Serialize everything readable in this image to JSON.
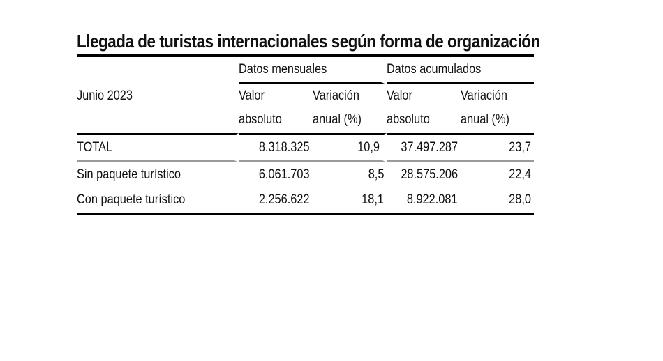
{
  "title": "Llegada de turistas internacionales según forma de organización",
  "table": {
    "period_label": "Junio 2023",
    "groups": {
      "monthly": "Datos mensuales",
      "cumulative": "Datos acumulados"
    },
    "subheaders": {
      "m_value_1": "Valor",
      "m_value_2": "absoluto",
      "m_var_1": "Variación",
      "m_var_2": "anual (%)",
      "c_value_1": "Valor",
      "c_value_2": "absoluto",
      "c_var_1": "Variación",
      "c_var_2": "anual (%)"
    },
    "rows": [
      {
        "label": "TOTAL",
        "m_value": "8.318.325",
        "m_var": "10,9",
        "c_value": "37.497.287",
        "c_var": "23,7"
      },
      {
        "label": "Sin paquete turístico",
        "m_value": "6.061.703",
        "m_var": "8,5",
        "c_value": "28.575.206",
        "c_var": "22,4"
      },
      {
        "label": "Con paquete turístico",
        "m_value": "2.256.622",
        "m_var": "18,1",
        "c_value": "8.922.081",
        "c_var": "28,0"
      }
    ]
  }
}
